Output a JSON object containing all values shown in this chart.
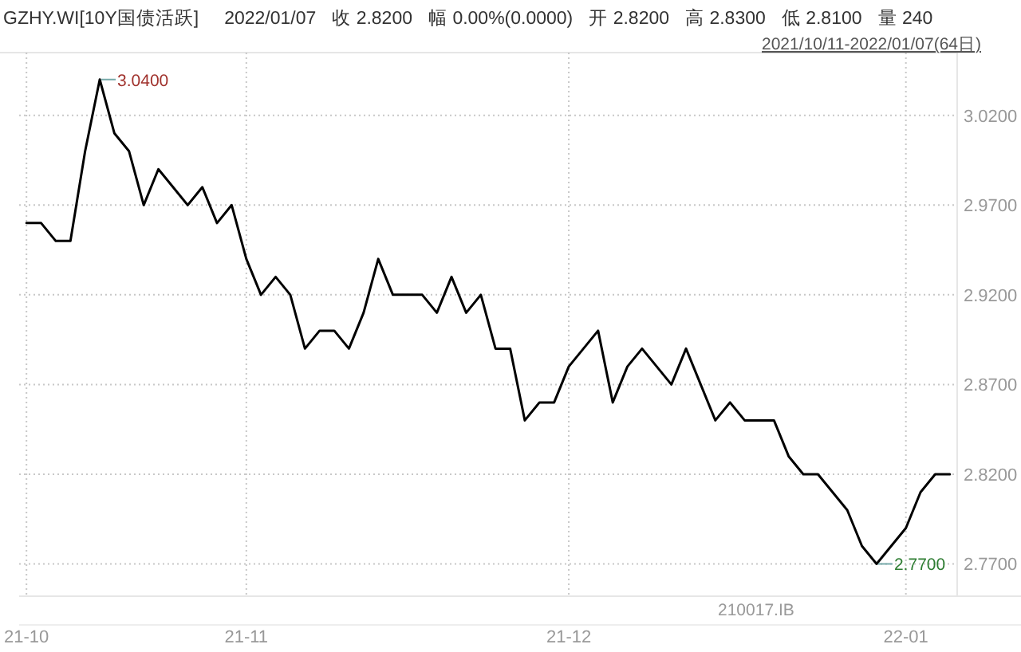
{
  "chart_data": {
    "type": "line",
    "title": "GZHY.WI[10Y国债活跃]",
    "annotations": [
      "2022/01/07",
      "收 2.8200",
      "幅 0.00%(0.0000)",
      "开 2.8200",
      "高 2.8300",
      "低 2.8100",
      "量 240",
      "2021/10/11-2022/01/07(64日)",
      "210017.IB",
      "3.0400",
      "2.7700"
    ],
    "categories": [
      "21-10",
      null,
      null,
      null,
      null,
      null,
      null,
      null,
      null,
      null,
      null,
      null,
      null,
      null,
      null,
      "21-11",
      null,
      null,
      null,
      null,
      null,
      null,
      null,
      null,
      null,
      null,
      null,
      null,
      null,
      null,
      null,
      null,
      null,
      null,
      null,
      null,
      null,
      "21-12",
      null,
      null,
      null,
      null,
      null,
      null,
      null,
      null,
      null,
      null,
      null,
      null,
      null,
      null,
      null,
      null,
      null,
      null,
      null,
      null,
      null,
      null,
      "22-01",
      null,
      null,
      null
    ],
    "series": [
      {
        "color": "#000000",
        "values": [
          2.96,
          2.96,
          2.95,
          2.95,
          3.0,
          3.04,
          3.01,
          3.0,
          2.97,
          2.99,
          2.98,
          2.97,
          2.98,
          2.96,
          2.97,
          2.94,
          2.92,
          2.93,
          2.92,
          2.89,
          2.9,
          2.9,
          2.89,
          2.91,
          2.94,
          2.92,
          2.92,
          2.92,
          2.91,
          2.93,
          2.91,
          2.92,
          2.89,
          2.89,
          2.85,
          2.86,
          2.86,
          2.88,
          2.89,
          2.9,
          2.86,
          2.88,
          2.89,
          2.88,
          2.87,
          2.89,
          2.87,
          2.85,
          2.86,
          2.85,
          2.85,
          2.85,
          2.83,
          2.82,
          2.82,
          2.81,
          2.8,
          2.78,
          2.77,
          2.78,
          2.79,
          2.81,
          2.82,
          2.82
        ]
      }
    ],
    "ylim": [
      2.752,
      3.055
    ],
    "yticks": [
      {
        "value": 2.77,
        "label": "2.7700"
      },
      {
        "value": 2.82,
        "label": "2.8200"
      },
      {
        "value": 2.87,
        "label": "2.8700"
      },
      {
        "value": 2.92,
        "label": "2.9200"
      },
      {
        "value": 2.97,
        "label": "2.9700"
      },
      {
        "value": 3.02,
        "label": "3.0200"
      }
    ],
    "grid": true,
    "marker": "none",
    "line_style": "solid"
  }
}
